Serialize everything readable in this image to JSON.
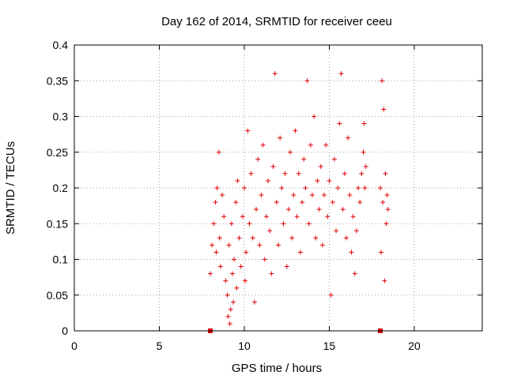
{
  "chart_data": {
    "type": "scatter",
    "title": "Day 162 of 2014, SRMTID for receiver ceeu",
    "xlabel": "GPS time / hours",
    "ylabel": "SRMTID / TECUs",
    "xlim": [
      0,
      24
    ],
    "ylim": [
      0,
      0.4
    ],
    "xticks": [
      "0",
      "5",
      "10",
      "15",
      "20"
    ],
    "yticks": [
      "0",
      "0.05",
      "0.1",
      "0.15",
      "0.2",
      "0.25",
      "0.3",
      "0.35",
      "0.4"
    ],
    "grid": true,
    "marker": "+",
    "color": "#e00000",
    "axis_markers_x": [
      8.0,
      18.0
    ],
    "points": [
      [
        8.0,
        0.08
      ],
      [
        8.1,
        0.12
      ],
      [
        8.2,
        0.15
      ],
      [
        8.3,
        0.18
      ],
      [
        8.35,
        0.11
      ],
      [
        8.4,
        0.2
      ],
      [
        8.5,
        0.25
      ],
      [
        8.55,
        0.13
      ],
      [
        8.6,
        0.09
      ],
      [
        8.7,
        0.19
      ],
      [
        8.8,
        0.16
      ],
      [
        8.9,
        0.07
      ],
      [
        9.0,
        0.05
      ],
      [
        9.05,
        0.02
      ],
      [
        9.1,
        0.12
      ],
      [
        9.15,
        0.01
      ],
      [
        9.2,
        0.03
      ],
      [
        9.25,
        0.15
      ],
      [
        9.3,
        0.08
      ],
      [
        9.35,
        0.04
      ],
      [
        9.4,
        0.1
      ],
      [
        9.5,
        0.18
      ],
      [
        9.55,
        0.06
      ],
      [
        9.6,
        0.21
      ],
      [
        9.7,
        0.13
      ],
      [
        9.8,
        0.09
      ],
      [
        9.9,
        0.16
      ],
      [
        10.0,
        0.2
      ],
      [
        10.05,
        0.07
      ],
      [
        10.1,
        0.11
      ],
      [
        10.2,
        0.28
      ],
      [
        10.3,
        0.15
      ],
      [
        10.4,
        0.22
      ],
      [
        10.5,
        0.13
      ],
      [
        10.6,
        0.04
      ],
      [
        10.7,
        0.17
      ],
      [
        10.8,
        0.24
      ],
      [
        10.9,
        0.12
      ],
      [
        11.0,
        0.19
      ],
      [
        11.1,
        0.26
      ],
      [
        11.2,
        0.1
      ],
      [
        11.3,
        0.16
      ],
      [
        11.4,
        0.21
      ],
      [
        11.5,
        0.14
      ],
      [
        11.6,
        0.08
      ],
      [
        11.7,
        0.23
      ],
      [
        11.8,
        0.36
      ],
      [
        11.9,
        0.18
      ],
      [
        12.0,
        0.12
      ],
      [
        12.1,
        0.27
      ],
      [
        12.2,
        0.2
      ],
      [
        12.3,
        0.15
      ],
      [
        12.4,
        0.22
      ],
      [
        12.5,
        0.09
      ],
      [
        12.6,
        0.17
      ],
      [
        12.7,
        0.25
      ],
      [
        12.8,
        0.13
      ],
      [
        12.9,
        0.19
      ],
      [
        13.0,
        0.28
      ],
      [
        13.1,
        0.16
      ],
      [
        13.2,
        0.22
      ],
      [
        13.3,
        0.11
      ],
      [
        13.4,
        0.18
      ],
      [
        13.5,
        0.24
      ],
      [
        13.6,
        0.2
      ],
      [
        13.7,
        0.35
      ],
      [
        13.8,
        0.15
      ],
      [
        13.9,
        0.26
      ],
      [
        14.0,
        0.19
      ],
      [
        14.1,
        0.3
      ],
      [
        14.2,
        0.13
      ],
      [
        14.3,
        0.21
      ],
      [
        14.4,
        0.17
      ],
      [
        14.5,
        0.23
      ],
      [
        14.6,
        0.12
      ],
      [
        14.7,
        0.19
      ],
      [
        14.8,
        0.26
      ],
      [
        14.9,
        0.16
      ],
      [
        15.0,
        0.21
      ],
      [
        15.1,
        0.05
      ],
      [
        15.2,
        0.18
      ],
      [
        15.3,
        0.24
      ],
      [
        15.4,
        0.14
      ],
      [
        15.5,
        0.2
      ],
      [
        15.6,
        0.29
      ],
      [
        15.7,
        0.36
      ],
      [
        15.8,
        0.17
      ],
      [
        15.9,
        0.22
      ],
      [
        16.0,
        0.13
      ],
      [
        16.1,
        0.27
      ],
      [
        16.2,
        0.19
      ],
      [
        16.3,
        0.11
      ],
      [
        16.4,
        0.16
      ],
      [
        16.5,
        0.08
      ],
      [
        16.6,
        0.14
      ],
      [
        16.7,
        0.2
      ],
      [
        16.8,
        0.18
      ],
      [
        16.9,
        0.22
      ],
      [
        17.0,
        0.25
      ],
      [
        17.05,
        0.29
      ],
      [
        17.1,
        0.2
      ],
      [
        17.15,
        0.23
      ],
      [
        18.0,
        0.2
      ],
      [
        18.05,
        0.11
      ],
      [
        18.1,
        0.35
      ],
      [
        18.15,
        0.18
      ],
      [
        18.2,
        0.31
      ],
      [
        18.25,
        0.07
      ],
      [
        18.3,
        0.22
      ],
      [
        18.35,
        0.15
      ],
      [
        18.4,
        0.19
      ],
      [
        18.45,
        0.17
      ]
    ]
  }
}
